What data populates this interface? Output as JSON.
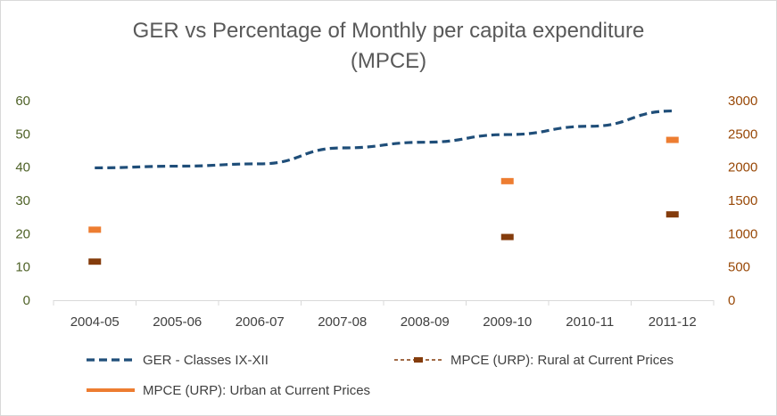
{
  "chart_data": {
    "type": "line",
    "title_line1": "GER vs Percentage of Monthly per capita expenditure",
    "title_line2": "(MPCE)",
    "categories": [
      "2004-05",
      "2005-06",
      "2006-07",
      "2007-08",
      "2008-09",
      "2009-10",
      "2010-11",
      "2011-12"
    ],
    "y_left": {
      "min": 0,
      "max": 60,
      "ticks": [
        "0",
        "10",
        "20",
        "30",
        "40",
        "50",
        "60"
      ]
    },
    "y_right": {
      "min": 0,
      "max": 3000,
      "ticks": [
        "0",
        "500",
        "1000",
        "1500",
        "2000",
        "2500",
        "3000"
      ]
    },
    "series": [
      {
        "name": "GER - Classes IX-XII",
        "axis": "left",
        "style": "dashed-line",
        "color": "#1f4e79",
        "values": [
          39.8,
          40.3,
          41.0,
          45.8,
          47.5,
          49.8,
          52.3,
          56.9
        ]
      },
      {
        "name": "MPCE (URP): Rural at Current Prices",
        "axis": "right",
        "style": "marker",
        "color": "#843c0c",
        "values": [
          580,
          null,
          null,
          null,
          null,
          950,
          null,
          1290
        ]
      },
      {
        "name": "MPCE (URP): Urban at Current Prices",
        "axis": "right",
        "style": "marker",
        "color": "#ed7d31",
        "values": [
          1060,
          null,
          null,
          null,
          null,
          1790,
          null,
          2410
        ]
      }
    ],
    "grid": false,
    "legend_position": "bottom"
  }
}
